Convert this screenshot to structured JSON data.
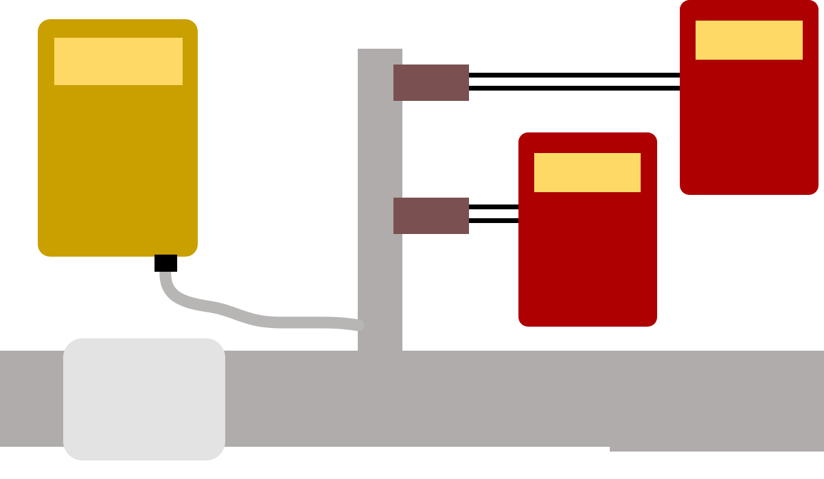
{
  "diagram": {
    "background": "#ffffff",
    "colors": {
      "structure": "#afacab",
      "cable": "#b8b6b5",
      "main_meter_body": "#c9a000",
      "meter_display": "#ffd966",
      "sub_meter_body": "#ae0000",
      "connector_block": "#7a5050",
      "wire": "#000000",
      "plug": "#000000",
      "soft_panel": "#e3e3e3"
    },
    "components": {
      "main_meter": {
        "kind": "meter",
        "color_role": "main_meter_body"
      },
      "sub_meter_upper": {
        "kind": "meter",
        "color_role": "sub_meter_body"
      },
      "sub_meter_lower": {
        "kind": "meter",
        "color_role": "sub_meter_body"
      },
      "connector_upper": {
        "kind": "connector"
      },
      "connector_lower": {
        "kind": "connector"
      },
      "post": {
        "kind": "structure"
      },
      "ground_beam": {
        "kind": "structure"
      },
      "side_panel": {
        "kind": "panel"
      }
    }
  }
}
